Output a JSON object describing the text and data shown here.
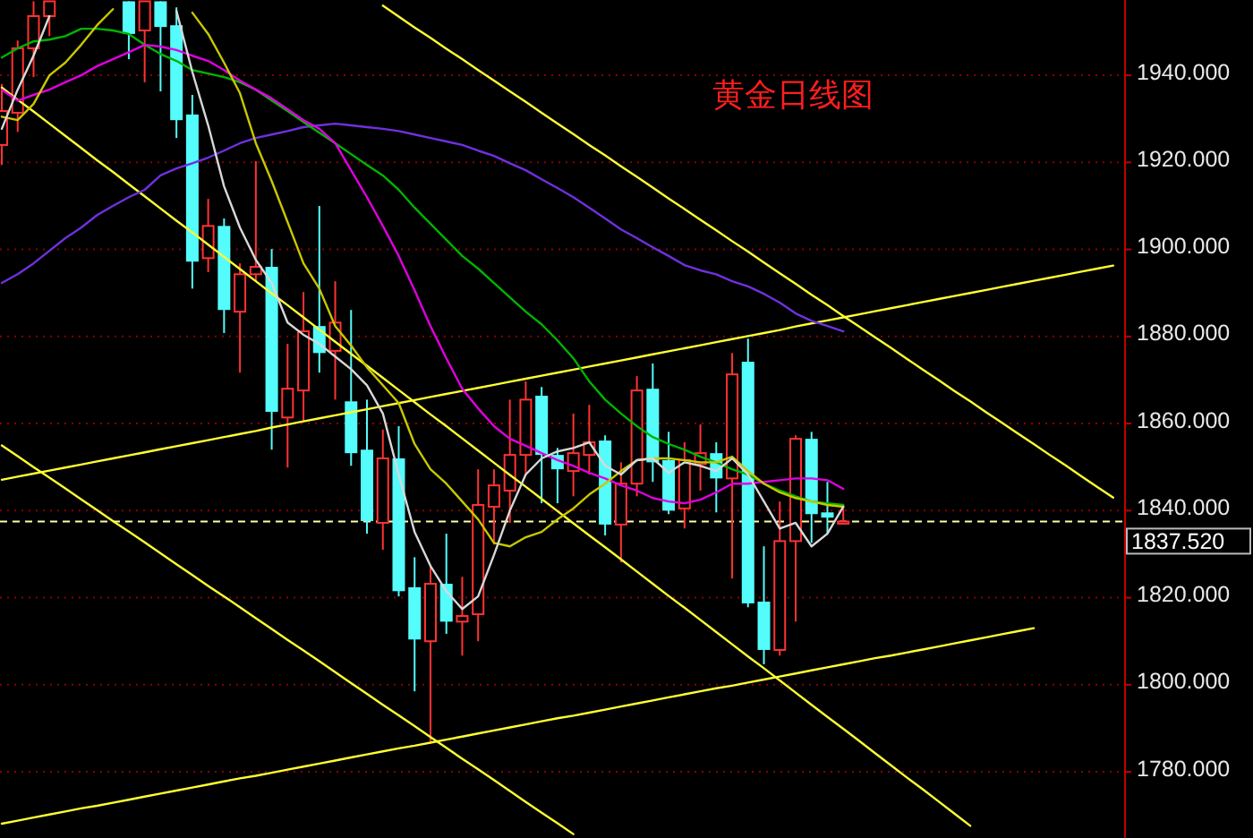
{
  "chart_data": {
    "type": "candlestick",
    "title": "黄金日线图",
    "categories": [
      null,
      null,
      null,
      null,
      null,
      null,
      null,
      null,
      null,
      null,
      null,
      null,
      null,
      null,
      null,
      null,
      null,
      null,
      null,
      null,
      null,
      null,
      null,
      null,
      null,
      null,
      null,
      null,
      null,
      null,
      null,
      null,
      null,
      null,
      null,
      null,
      null,
      null,
      null,
      null,
      null,
      null,
      null,
      null,
      null,
      null,
      null,
      null,
      null,
      null,
      null,
      null,
      null,
      null,
      null,
      null,
      null,
      null,
      null,
      null,
      null,
      null,
      null,
      null,
      null,
      null,
      null,
      null,
      null,
      null,
      null
    ],
    "ohlc": [
      [
        1924.0,
        1938.0,
        1919.4,
        1931.8
      ],
      [
        1931.4,
        1948.0,
        1927.0,
        1946.2
      ],
      [
        1946.2,
        1957.0,
        1939.6,
        1953.6
      ],
      [
        1953.6,
        1957.0,
        1949.0,
        1957.0
      ],
      null,
      null,
      null,
      null,
      [
        1957.0,
        1957.0,
        1943.7,
        1949.5
      ],
      [
        1950.3,
        1957.0,
        1938.4,
        1957.0
      ],
      [
        1957.0,
        1957.0,
        1936.3,
        1951.1
      ],
      [
        1951.5,
        1955.6,
        1925.6,
        1929.7
      ],
      [
        1931.0,
        1935.5,
        1891.0,
        1897.2
      ],
      [
        1898.0,
        1911.6,
        1894.8,
        1905.4
      ],
      [
        1905.4,
        1907.1,
        1880.8,
        1886.1
      ],
      [
        1885.7,
        1896.8,
        1871.7,
        1894.3
      ],
      [
        1894.3,
        1920.3,
        1892.7,
        1896.0
      ],
      [
        1896.0,
        1900.1,
        1854.0,
        1862.7
      ],
      [
        1861.4,
        1878.3,
        1849.9,
        1868.0
      ],
      [
        1867.6,
        1890.2,
        1860.6,
        1881.2
      ],
      [
        1882.4,
        1910.0,
        1871.7,
        1876.2
      ],
      [
        1876.7,
        1892.7,
        1865.5,
        1883.2
      ],
      [
        1865.1,
        1886.1,
        1850.3,
        1853.2
      ],
      [
        1854.0,
        1865.5,
        1834.7,
        1837.6
      ],
      [
        1837.2,
        1858.6,
        1831.0,
        1852.0
      ],
      [
        1852.0,
        1859.4,
        1820.3,
        1821.5
      ],
      [
        1822.4,
        1829.3,
        1798.5,
        1810.4
      ],
      [
        1810.0,
        1827.3,
        1787.0,
        1823.2
      ],
      [
        1823.2,
        1834.7,
        1811.7,
        1814.5
      ],
      [
        1814.5,
        1824.8,
        1806.7,
        1815.8
      ],
      [
        1816.2,
        1849.5,
        1810.0,
        1841.3
      ],
      [
        1840.9,
        1849.5,
        1832.2,
        1845.8
      ],
      [
        1844.6,
        1865.5,
        1837.2,
        1852.8
      ],
      [
        1852.8,
        1869.7,
        1848.3,
        1865.5
      ],
      [
        1866.4,
        1868.4,
        1841.7,
        1852.8
      ],
      [
        1852.8,
        1854.4,
        1841.7,
        1849.5
      ],
      [
        1849.1,
        1862.3,
        1843.3,
        1853.2
      ],
      [
        1852.8,
        1864.3,
        1848.3,
        1855.7
      ],
      [
        1856.1,
        1857.3,
        1834.3,
        1836.8
      ],
      [
        1836.8,
        1851.1,
        1828.1,
        1846.2
      ],
      [
        1846.2,
        1870.9,
        1843.3,
        1867.6
      ],
      [
        1868.0,
        1873.8,
        1846.6,
        1851.1
      ],
      [
        1851.6,
        1858.1,
        1839.2,
        1840.0
      ],
      [
        1840.5,
        1855.7,
        1835.9,
        1851.6
      ],
      [
        1850.7,
        1859.8,
        1844.6,
        1853.2
      ],
      [
        1853.2,
        1855.7,
        1839.6,
        1847.4
      ],
      [
        1847.4,
        1876.2,
        1824.4,
        1871.3
      ],
      [
        1874.2,
        1879.5,
        1817.8,
        1818.7
      ],
      [
        1819.1,
        1831.8,
        1804.7,
        1808.0
      ],
      [
        1808.0,
        1842.1,
        1806.7,
        1833.0
      ],
      [
        1833.0,
        1857.3,
        1814.5,
        1856.5
      ],
      [
        1856.5,
        1858.1,
        1832.6,
        1839.2
      ],
      [
        1839.6,
        1846.6,
        1834.7,
        1838.4
      ],
      [
        1837.0,
        1841.3,
        1836.8,
        1837.5
      ],
      null,
      null,
      null,
      null,
      null,
      null,
      null,
      null,
      null,
      null,
      null,
      null,
      null,
      null,
      null,
      null,
      null
    ],
    "colors": [
      "#ff3232",
      "#ff3232",
      "#ff3232",
      "#ff3232",
      null,
      null,
      null,
      null,
      "#54fcfc",
      "#ff3232",
      "#54fcfc",
      "#54fcfc",
      "#54fcfc",
      "#ff3232",
      "#54fcfc",
      "#ff3232",
      "#ff3232",
      "#54fcfc",
      "#ff3232",
      "#ff3232",
      "#54fcfc",
      "#ff3232",
      "#54fcfc",
      "#54fcfc",
      "#ff3232",
      "#54fcfc",
      "#54fcfc",
      "#ff3232",
      "#54fcfc",
      "#ff3232",
      "#ff3232",
      "#ff3232",
      "#ff3232",
      "#ff3232",
      "#54fcfc",
      "#54fcfc",
      "#ff3232",
      "#ff3232",
      "#54fcfc",
      "#ff3232",
      "#ff3232",
      "#54fcfc",
      "#54fcfc",
      "#ff3232",
      "#ff3232",
      "#54fcfc",
      "#ff3232",
      "#54fcfc",
      "#54fcfc",
      "#ff3232",
      "#ff3232",
      "#54fcfc",
      "#54fcfc",
      "#ff3232",
      null,
      null,
      null,
      null,
      null,
      null,
      null,
      null,
      null,
      null,
      null,
      null,
      null,
      null,
      null,
      null,
      null
    ],
    "series": [
      {
        "type": "line",
        "color": "#ffff33",
        "values": [
          1937.2,
          1934.4,
          1931.7,
          1928.9,
          1926.1,
          1923.3,
          1920.5,
          1917.8,
          1915.0,
          1912.2,
          1909.4,
          1906.6,
          1903.9,
          1901.1,
          1898.3,
          1895.5,
          1892.7,
          1889.9,
          1887.2,
          1884.4,
          1881.6,
          1878.8,
          1876.0,
          1873.3,
          1870.5,
          1867.7,
          1864.9,
          1862.1,
          1859.4,
          1856.6,
          1853.8,
          1851.0,
          1848.2,
          1845.5,
          1842.7,
          1839.9,
          1837.1,
          1834.3,
          1831.6,
          1828.8,
          1826.0,
          1823.2,
          1820.4,
          1817.7,
          1814.9,
          1812.1,
          1809.3,
          1806.5,
          1803.8,
          1801.0,
          1798.2,
          1795.4,
          1792.6,
          1789.9,
          1787.1,
          1784.3,
          1781.5,
          1778.7,
          1776.0,
          1773.2,
          1770.4,
          1767.6,
          null,
          null,
          null,
          null,
          null,
          null,
          null,
          null,
          null
        ]
      },
      {
        "type": "line",
        "color": "#ffff33",
        "values": [
          1855.0,
          1852.5,
          1850.0,
          1847.6,
          1845.1,
          1842.6,
          1840.1,
          1837.6,
          1835.2,
          1832.7,
          1830.2,
          1827.7,
          1825.2,
          1822.7,
          1820.3,
          1817.8,
          1815.3,
          1812.8,
          1810.3,
          1807.9,
          1805.4,
          1802.9,
          1800.4,
          1797.9,
          1795.4,
          1793.0,
          1790.5,
          1788.0,
          1785.5,
          1783.0,
          1780.6,
          1778.1,
          1775.6,
          1773.1,
          1770.6,
          1768.2,
          1765.7,
          null,
          null,
          null,
          null,
          null,
          null,
          null,
          null,
          null,
          null,
          null,
          null,
          null,
          null,
          null,
          null,
          null,
          null,
          null,
          null,
          null,
          null,
          null,
          null,
          null,
          null,
          null,
          null,
          null,
          null,
          null,
          null,
          null,
          null
        ]
      },
      {
        "type": "line",
        "color": "#ffff33",
        "values": [
          null,
          null,
          null,
          null,
          null,
          null,
          null,
          null,
          null,
          null,
          null,
          null,
          null,
          null,
          null,
          null,
          null,
          null,
          null,
          null,
          null,
          null,
          null,
          null,
          1956.0,
          1953.5,
          1951.0,
          1948.6,
          1946.1,
          1943.7,
          1941.2,
          1938.8,
          1936.3,
          1933.9,
          1931.4,
          1928.9,
          1926.5,
          1924.0,
          1921.6,
          1919.1,
          1916.7,
          1914.2,
          1911.7,
          1909.3,
          1906.8,
          1904.4,
          1901.9,
          1899.5,
          1897.0,
          1894.5,
          1892.1,
          1889.6,
          1887.2,
          1884.7,
          1882.3,
          1879.8,
          1877.4,
          1874.9,
          1872.4,
          1870.0,
          1867.5,
          1865.1,
          1862.6,
          1860.2,
          1857.7,
          1855.3,
          1852.8,
          1850.4,
          1847.9,
          1845.4,
          1843.0
        ]
      },
      {
        "type": "line",
        "color": "#ffff33",
        "values": [
          1847.1,
          1847.8,
          1848.5,
          1849.2,
          1849.9,
          1850.6,
          1851.3,
          1852.0,
          1852.7,
          1853.4,
          1854.1,
          1854.8,
          1855.5,
          1856.2,
          1856.9,
          1857.6,
          1858.3,
          1859.1,
          1859.8,
          1860.5,
          1861.2,
          1861.9,
          1862.6,
          1863.3,
          1864.0,
          1864.7,
          1865.4,
          1866.1,
          1866.8,
          1867.5,
          1868.2,
          1868.9,
          1869.6,
          1870.3,
          1871.0,
          1871.7,
          1872.4,
          1873.1,
          1873.8,
          1874.5,
          1875.2,
          1875.9,
          1876.6,
          1877.3,
          1878.0,
          1878.7,
          1879.4,
          1880.1,
          1880.8,
          1881.5,
          1882.3,
          1883.0,
          1883.7,
          1884.4,
          1885.1,
          1885.8,
          1886.5,
          1887.2,
          1887.9,
          1888.6,
          1889.3,
          1890.0,
          1890.7,
          1891.4,
          1892.1,
          1892.8,
          1893.5,
          1894.2,
          1894.9,
          1895.6,
          1896.3
        ]
      },
      {
        "type": "line",
        "color": "#ffff33",
        "values": [
          1768.1,
          1768.8,
          1769.5,
          1770.2,
          1770.9,
          1771.6,
          1772.2,
          1772.9,
          1773.6,
          1774.3,
          1775.0,
          1775.7,
          1776.4,
          1777.1,
          1777.8,
          1778.5,
          1779.1,
          1779.8,
          1780.5,
          1781.2,
          1781.9,
          1782.6,
          1783.3,
          1784.0,
          1784.7,
          1785.4,
          1786.0,
          1786.7,
          1787.4,
          1788.1,
          1788.8,
          1789.5,
          1790.2,
          1790.9,
          1791.6,
          1792.3,
          1792.9,
          1793.6,
          1794.3,
          1795.0,
          1795.7,
          1796.4,
          1797.1,
          1797.8,
          1798.5,
          1799.2,
          1799.8,
          1800.5,
          1801.2,
          1801.9,
          1802.6,
          1803.3,
          1804.0,
          1804.7,
          1805.4,
          1806.1,
          1806.7,
          1807.4,
          1808.1,
          1808.8,
          1809.5,
          1810.2,
          1810.9,
          1811.6,
          1812.3,
          1813.0,
          null,
          null,
          null,
          null,
          null
        ]
      },
      {
        "type": "line",
        "color": "#7030e0",
        "values": [
          1892.3,
          1894.3,
          1896.8,
          1899.7,
          1902.6,
          1905.0,
          1907.9,
          1910.0,
          1912.0,
          1913.7,
          1917.0,
          1918.6,
          1919.8,
          1921.1,
          1922.7,
          1924.4,
          1925.6,
          1926.4,
          1927.2,
          1928.1,
          1928.5,
          1928.9,
          1928.5,
          1928.1,
          1927.7,
          1927.2,
          1926.4,
          1925.6,
          1924.8,
          1924.0,
          1922.7,
          1921.5,
          1919.8,
          1918.2,
          1916.1,
          1914.1,
          1912.0,
          1909.6,
          1907.1,
          1904.6,
          1902.6,
          1900.5,
          1898.5,
          1896.4,
          1895.2,
          1894.3,
          1892.7,
          1891.5,
          1889.8,
          1887.8,
          1885.3,
          1883.6,
          1882.4,
          1881.2,
          null,
          null,
          null,
          null,
          null,
          null,
          null,
          null,
          null,
          null,
          null,
          null,
          null,
          null,
          null,
          null,
          null
        ]
      },
      {
        "type": "line",
        "color": "#00b400",
        "values": [
          1944.1,
          1946.2,
          1947.8,
          1948.2,
          1949.0,
          1950.7,
          1950.7,
          1950.3,
          1949.5,
          1947.0,
          1944.9,
          1943.3,
          1941.2,
          1940.4,
          1939.6,
          1938.4,
          1936.7,
          1934.2,
          1931.8,
          1929.3,
          1926.8,
          1924.4,
          1921.9,
          1919.4,
          1917.0,
          1913.7,
          1909.6,
          1905.9,
          1902.2,
          1898.5,
          1895.6,
          1892.3,
          1889.0,
          1885.7,
          1882.8,
          1879.1,
          1875.0,
          1869.7,
          1865.5,
          1862.3,
          1859.4,
          1856.9,
          1855.3,
          1854.0,
          1852.4,
          1851.1,
          1849.5,
          1848.3,
          1846.2,
          1844.6,
          1843.3,
          1842.1,
          1841.7,
          1841.3,
          null,
          null,
          null,
          null,
          null,
          null,
          null,
          null,
          null,
          null,
          null,
          null,
          null,
          null,
          null,
          null,
          null
        ]
      },
      {
        "type": "line",
        "color": "#e000e0",
        "values": [
          1936.7,
          1934.2,
          1935.5,
          1936.7,
          1938.4,
          1940.0,
          1942.1,
          1943.7,
          1945.3,
          1947.0,
          1946.6,
          1945.8,
          1944.5,
          1943.3,
          1941.2,
          1938.8,
          1936.7,
          1934.7,
          1932.2,
          1929.7,
          1927.7,
          1924.4,
          1918.2,
          1912.0,
          1905.4,
          1898.5,
          1890.6,
          1882.4,
          1875.0,
          1868.0,
          1863.5,
          1859.4,
          1856.5,
          1854.9,
          1853.2,
          1851.6,
          1850.3,
          1848.7,
          1847.4,
          1845.8,
          1844.6,
          1842.9,
          1842.1,
          1841.7,
          1842.5,
          1844.2,
          1846.2,
          1846.2,
          1846.6,
          1847.0,
          1847.4,
          1847.4,
          1847.0,
          1845.0,
          null,
          null,
          null,
          null,
          null,
          null,
          null,
          null,
          null,
          null,
          null,
          null,
          null,
          null,
          null,
          null,
          null
        ]
      },
      {
        "type": "line",
        "color": "#c8c800",
        "values": [
          1930.5,
          1929.7,
          1933.4,
          1940.0,
          1942.9,
          1947.0,
          1951.5,
          1955.2,
          null,
          null,
          null,
          null,
          1954.4,
          1949.5,
          1942.9,
          1935.9,
          1924.4,
          1915.7,
          1906.3,
          1896.8,
          1891.0,
          1882.4,
          1877.9,
          1872.9,
          1868.8,
          1864.7,
          1855.3,
          1849.5,
          1846.2,
          1842.1,
          1838.0,
          1832.6,
          1831.8,
          1833.9,
          1835.1,
          1838.0,
          1840.5,
          1843.7,
          1846.2,
          1849.1,
          1851.6,
          1852.0,
          1852.0,
          1851.6,
          1851.1,
          1851.1,
          1852.4,
          1849.1,
          1846.2,
          1844.2,
          1842.9,
          1842.1,
          1841.3,
          1840.9,
          null,
          null,
          null,
          null,
          null,
          null,
          null,
          null,
          null,
          null,
          null,
          null,
          null,
          null,
          null,
          null,
          null
        ]
      },
      {
        "type": "line",
        "color": "#d8d8d8",
        "values": [
          1927.7,
          1936.7,
          1944.5,
          1953.6,
          null,
          null,
          null,
          null,
          null,
          null,
          null,
          1954.8,
          1940.8,
          1928.5,
          1914.5,
          1905.0,
          1897.6,
          1892.3,
          1883.2,
          1880.4,
          1878.3,
          1875.4,
          1872.5,
          1868.8,
          1862.3,
          1848.3,
          1835.1,
          1827.3,
          1821.5,
          1817.4,
          1820.3,
          1829.8,
          1840.0,
          1848.3,
          1852.0,
          1853.6,
          1854.4,
          1855.7,
          1850.3,
          1848.3,
          1851.6,
          1852.0,
          1848.7,
          1851.1,
          1850.3,
          1849.1,
          1852.0,
          1848.3,
          1842.1,
          1835.9,
          1837.2,
          1831.8,
          1834.7,
          1840.9,
          null,
          null,
          null,
          null,
          null,
          null,
          null,
          null,
          null,
          null,
          null,
          null,
          null,
          null,
          null,
          null,
          null
        ]
      }
    ],
    "ylim": [
      1764.8,
      1957.3
    ],
    "yticks": [
      {
        "value": 1780,
        "label": "1780.000"
      },
      {
        "value": 1800,
        "label": "1800.000"
      },
      {
        "value": 1820,
        "label": "1820.000"
      },
      {
        "value": 1840,
        "label": "1840.000"
      },
      {
        "value": 1860,
        "label": "1860.000"
      },
      {
        "value": 1880,
        "label": "1880.000"
      },
      {
        "value": 1900,
        "label": "1900.000"
      },
      {
        "value": 1920,
        "label": "1920.000"
      },
      {
        "value": 1940,
        "label": "1940.000"
      }
    ],
    "grid": "y",
    "tick_labels": "y",
    "ref_lines": [
      {
        "axis": "y",
        "value": 1837.52,
        "label": "1837.520",
        "color": "#ffffa0",
        "line_style": "dashed"
      }
    ]
  }
}
